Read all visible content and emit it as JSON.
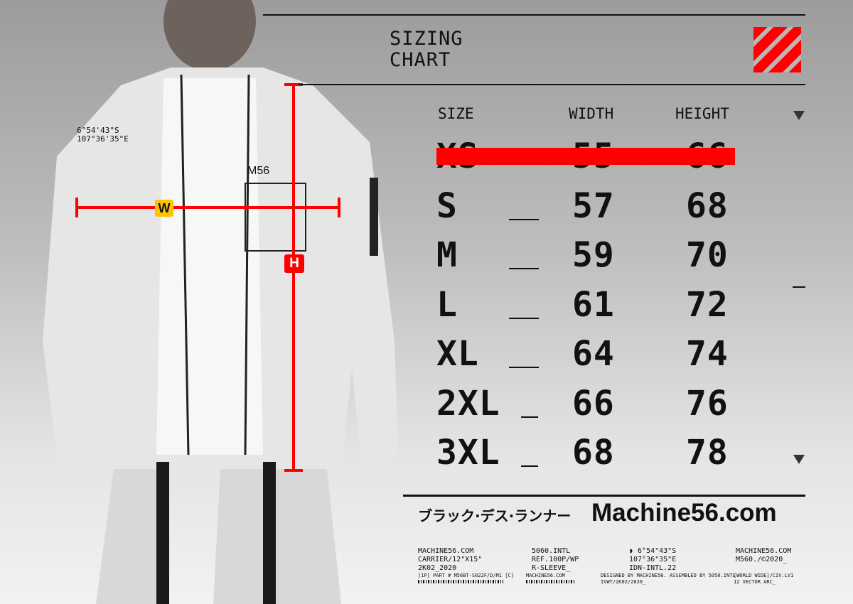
{
  "header": {
    "title_line1": "SIZING",
    "title_line2": "CHART"
  },
  "table": {
    "columns": [
      "SIZE",
      "WIDTH",
      "HEIGHT"
    ],
    "rows": [
      {
        "size": "XS",
        "width": "55",
        "height": "66",
        "struck": true
      },
      {
        "size": "S",
        "width": "57",
        "height": "68"
      },
      {
        "size": "M",
        "width": "59",
        "height": "70"
      },
      {
        "size": "L",
        "width": "61",
        "height": "72"
      },
      {
        "size": "XL",
        "width": "64",
        "height": "74"
      },
      {
        "size": "2XL",
        "width": "66",
        "height": "76"
      },
      {
        "size": "3XL",
        "width": "68",
        "height": "78"
      }
    ]
  },
  "markers": {
    "width": "W",
    "height": "H"
  },
  "jacket_print": {
    "coords": "6°54'43\"S\n107°36'35\"E",
    "brand": "M56"
  },
  "brand": {
    "japanese": "ブラック·デス·ランナー",
    "site": "Machine56.com"
  },
  "footer": {
    "col1": "MACHINE56.COM\nCARRIER/12\"X15\"\n2K02_2020",
    "col2": "5060.INTL\nREF.100P/WP\nR-SLEEVE_",
    "col3": "◗ 6°54\"43\"S\n107°36\"35\"E\nIDN-INTL.22",
    "col4": "MACHINE56.COM\nM560./©2020_",
    "sub1": "[1P] PART # M56BT-S022F/D/M1 [C]",
    "sub2": "MACHINE56.COM",
    "sub3": "DESIGNED BY MACHINE56. ASSEMBLED BY 5050.INTL\nIVWT/2K02/2020_",
    "sub4": "[WORLD WIDE]/CIV.LV1\n12 VECTOR ARC_"
  },
  "colors": {
    "accent": "#ff0000",
    "marker_w": "#ffc400",
    "text": "#111111"
  }
}
